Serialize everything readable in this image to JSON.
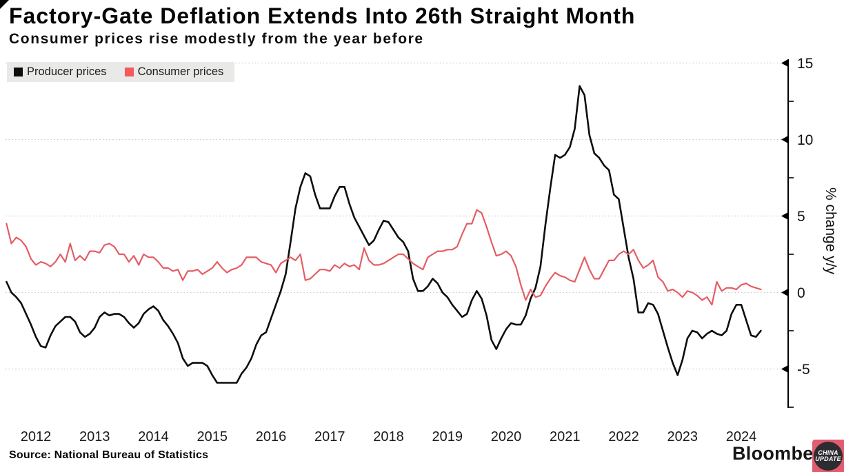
{
  "header": {
    "title": "Factory-Gate Deflation Extends Into 26th Straight Month",
    "subtitle": "Consumer prices rise modestly from the year before"
  },
  "legend": {
    "background": "#e9e9e8",
    "items": [
      {
        "label": "Producer prices",
        "swatch_color": "#0d0d0d"
      },
      {
        "label": "Consumer prices",
        "swatch_color": "#f25a5e"
      }
    ]
  },
  "source": {
    "text": "Source: National Bureau of Statistics"
  },
  "branding": {
    "wordmark": "Bloomberg"
  },
  "watermark": {
    "line1": "CHINA",
    "line2": "UPDATE",
    "square_color": "#e25b6e",
    "circle_color": "#2c2c31",
    "text_color": "#ffffff"
  },
  "chart_data": {
    "type": "line",
    "title": "Factory-Gate Deflation Extends Into 26th Straight Month",
    "subtitle": "Consumer prices rise modestly from the year before",
    "x_unit": "month",
    "x_start": "2012-01",
    "x_end": "2024-11",
    "year_labels": [
      "2012",
      "2013",
      "2014",
      "2015",
      "2016",
      "2017",
      "2018",
      "2019",
      "2020",
      "2021",
      "2022",
      "2023",
      "2024"
    ],
    "ylabel": "% change y/y",
    "ylim": [
      -7.6,
      15.4
    ],
    "yticks_major": [
      15,
      10,
      5,
      0,
      -5
    ],
    "yticks_minor": [
      12.5,
      7.5,
      2.5,
      -2.5,
      -7.5
    ],
    "grid": "dotted horizontal gridlines at major y ticks",
    "legend_position": "top-left",
    "axis_color": "#000000",
    "gridline_color": "#c9c9c9",
    "series": [
      {
        "name": "Producer prices",
        "color": "#0d0d0d",
        "stroke_width": 2.6,
        "values": [
          0.7,
          0.0,
          -0.3,
          -0.7,
          -1.4,
          -2.1,
          -2.9,
          -3.5,
          -3.6,
          -2.8,
          -2.2,
          -1.9,
          -1.6,
          -1.6,
          -1.9,
          -2.6,
          -2.9,
          -2.7,
          -2.3,
          -1.6,
          -1.3,
          -1.5,
          -1.4,
          -1.4,
          -1.6,
          -2.0,
          -2.3,
          -2.0,
          -1.4,
          -1.1,
          -0.9,
          -1.2,
          -1.8,
          -2.2,
          -2.7,
          -3.3,
          -4.3,
          -4.8,
          -4.6,
          -4.6,
          -4.6,
          -4.8,
          -5.4,
          -5.9,
          -5.9,
          -5.9,
          -5.9,
          -5.9,
          -5.3,
          -4.9,
          -4.3,
          -3.4,
          -2.8,
          -2.6,
          -1.7,
          -0.8,
          0.1,
          1.2,
          3.3,
          5.5,
          6.9,
          7.8,
          7.6,
          6.4,
          5.5,
          5.5,
          5.5,
          6.3,
          6.9,
          6.9,
          5.8,
          4.9,
          4.3,
          3.7,
          3.1,
          3.4,
          4.1,
          4.7,
          4.6,
          4.1,
          3.6,
          3.3,
          2.7,
          0.9,
          0.1,
          0.1,
          0.4,
          0.9,
          0.6,
          0.0,
          -0.3,
          -0.8,
          -1.2,
          -1.6,
          -1.4,
          -0.5,
          0.1,
          -0.4,
          -1.5,
          -3.1,
          -3.7,
          -3.0,
          -2.4,
          -2.0,
          -2.1,
          -2.1,
          -1.5,
          -0.4,
          0.3,
          1.7,
          4.4,
          6.8,
          9.0,
          8.8,
          9.0,
          9.5,
          10.7,
          13.5,
          12.9,
          10.3,
          9.1,
          8.8,
          8.3,
          8.0,
          6.4,
          6.1,
          4.2,
          2.3,
          0.9,
          -1.3,
          -1.3,
          -0.7,
          -0.8,
          -1.4,
          -2.5,
          -3.6,
          -4.6,
          -5.4,
          -4.4,
          -3.0,
          -2.5,
          -2.6,
          -3.0,
          -2.7,
          -2.5,
          -2.7,
          -2.8,
          -2.5,
          -1.4,
          -0.8,
          -0.8,
          -1.8,
          -2.8,
          -2.9,
          -2.5
        ]
      },
      {
        "name": "Consumer prices",
        "color": "#e45d63",
        "stroke_width": 2.2,
        "values": [
          4.5,
          3.2,
          3.6,
          3.4,
          3.0,
          2.2,
          1.8,
          2.0,
          1.9,
          1.7,
          2.0,
          2.5,
          2.0,
          3.2,
          2.1,
          2.4,
          2.1,
          2.7,
          2.7,
          2.6,
          3.1,
          3.2,
          3.0,
          2.5,
          2.5,
          2.0,
          2.4,
          1.8,
          2.5,
          2.3,
          2.3,
          2.0,
          1.6,
          1.6,
          1.4,
          1.5,
          0.8,
          1.4,
          1.4,
          1.5,
          1.2,
          1.4,
          1.6,
          2.0,
          1.6,
          1.3,
          1.5,
          1.6,
          1.8,
          2.3,
          2.3,
          2.3,
          2.0,
          1.9,
          1.8,
          1.3,
          1.9,
          2.1,
          2.3,
          2.1,
          2.5,
          0.8,
          0.9,
          1.2,
          1.5,
          1.5,
          1.4,
          1.8,
          1.6,
          1.9,
          1.7,
          1.8,
          1.5,
          2.9,
          2.1,
          1.8,
          1.8,
          1.9,
          2.1,
          2.3,
          2.5,
          2.5,
          2.2,
          1.9,
          1.7,
          1.5,
          2.3,
          2.5,
          2.7,
          2.7,
          2.8,
          2.8,
          3.0,
          3.8,
          4.5,
          4.5,
          5.4,
          5.2,
          4.3,
          3.3,
          2.4,
          2.5,
          2.7,
          2.4,
          1.7,
          0.5,
          -0.5,
          0.2,
          -0.3,
          -0.2,
          0.4,
          0.9,
          1.3,
          1.1,
          1.0,
          0.8,
          0.7,
          1.5,
          2.3,
          1.5,
          0.9,
          0.9,
          1.5,
          2.1,
          2.1,
          2.5,
          2.7,
          2.5,
          2.8,
          2.1,
          1.6,
          1.8,
          2.1,
          1.0,
          0.7,
          0.1,
          0.2,
          0.0,
          -0.3,
          0.1,
          0.0,
          -0.2,
          -0.5,
          -0.3,
          -0.8,
          0.7,
          0.1,
          0.3,
          0.3,
          0.2,
          0.5,
          0.6,
          0.4,
          0.3,
          0.2
        ]
      }
    ]
  }
}
